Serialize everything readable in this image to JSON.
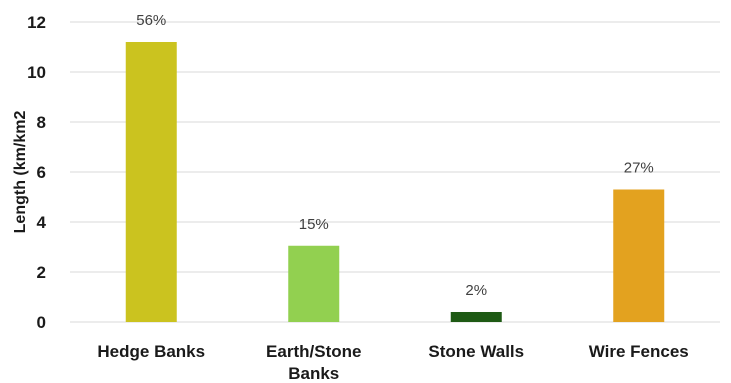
{
  "chart_data": {
    "type": "bar",
    "categories": [
      "Hedge Banks",
      "Earth/Stone Banks",
      "Stone Walls",
      "Wire Fences"
    ],
    "category_lines": [
      [
        "Hedge Banks"
      ],
      [
        "Earth/Stone",
        "Banks"
      ],
      [
        "Stone Walls"
      ],
      [
        "Wire Fences"
      ]
    ],
    "values": [
      11.2,
      3.05,
      0.4,
      5.3
    ],
    "data_labels": [
      "56%",
      "15%",
      "2%",
      "27%"
    ],
    "colors": [
      "#cbc31f",
      "#92d050",
      "#1e5a14",
      "#e3a21f"
    ],
    "title": "",
    "xlabel": "",
    "ylabel": "Length (km/km2",
    "ylim": [
      0,
      12
    ],
    "yticks": [
      0,
      2,
      4,
      6,
      8,
      10,
      12
    ],
    "grid": true,
    "legend": "none"
  }
}
